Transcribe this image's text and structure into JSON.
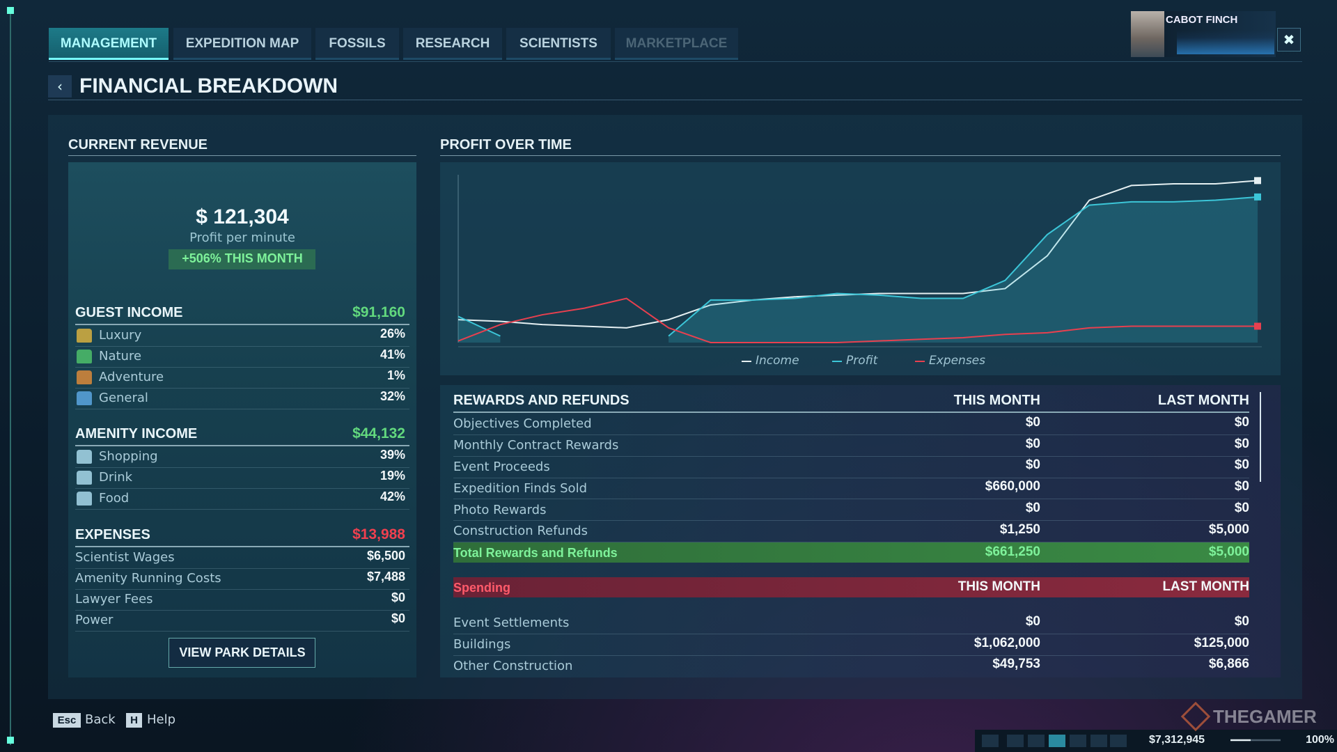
{
  "tabs": [
    "MANAGEMENT",
    "EXPEDITION MAP",
    "FOSSILS",
    "RESEARCH",
    "SCIENTISTS",
    "MARKETPLACE"
  ],
  "profile": {
    "name": "CABOT FINCH"
  },
  "header": {
    "title": "FINANCIAL BREAKDOWN"
  },
  "current_revenue": {
    "title": "CURRENT REVENUE",
    "profit": "$ 121,304",
    "profit_label": "Profit per minute",
    "change": "+506% THIS MONTH",
    "sections": [
      {
        "title": "GUEST INCOME",
        "total": "$91,160",
        "rows": [
          [
            "Luxury",
            "26%"
          ],
          [
            "Nature",
            "41%"
          ],
          [
            "Adventure",
            "1%"
          ],
          [
            "General",
            "32%"
          ]
        ]
      },
      {
        "title": "AMENITY INCOME",
        "total": "$44,132",
        "rows": [
          [
            "Shopping",
            "39%"
          ],
          [
            "Drink",
            "19%"
          ],
          [
            "Food",
            "42%"
          ]
        ]
      },
      {
        "title": "EXPENSES",
        "total": "$13,988",
        "rows": [
          [
            "Scientist Wages",
            "$6,500"
          ],
          [
            "Amenity Running Costs",
            "$7,488"
          ],
          [
            "Lawyer Fees",
            "$0"
          ],
          [
            "Power",
            "$0"
          ]
        ]
      }
    ],
    "button": "VIEW PARK DETAILS"
  },
  "chart_data": {
    "type": "line",
    "title": "PROFIT OVER TIME",
    "ylim": [
      0,
      100
    ],
    "series": [
      {
        "name": "Income",
        "color": "#e6f0f2",
        "values": [
          14,
          13,
          11,
          10,
          9,
          14,
          23,
          26,
          28,
          29,
          30,
          30,
          30,
          33,
          53,
          87,
          96,
          97,
          97,
          99
        ]
      },
      {
        "name": "Profit",
        "color": "#3cc6d8",
        "values": [
          16,
          4,
          null,
          null,
          null,
          4,
          26,
          26,
          27,
          30,
          29,
          27,
          27,
          38,
          66,
          84,
          86,
          86,
          87,
          89
        ]
      },
      {
        "name": "Expenses",
        "color": "#e8404f",
        "values": [
          1,
          11,
          17,
          21,
          27,
          9,
          0,
          0,
          0,
          0,
          1,
          2,
          3,
          5,
          6,
          9,
          10,
          10,
          10,
          10
        ]
      }
    ]
  },
  "rewards": {
    "title": "REWARDS AND REFUNDS",
    "columns": [
      "THIS MONTH",
      "LAST MONTH"
    ],
    "rows": [
      [
        "Objectives Completed",
        "$0",
        "$0"
      ],
      [
        "Monthly Contract Rewards",
        "$0",
        "$0"
      ],
      [
        "Event Proceeds",
        "$0",
        "$0"
      ],
      [
        "Expedition Finds Sold",
        "$660,000",
        "$0"
      ],
      [
        "Photo Rewards",
        "$0",
        "$0"
      ],
      [
        "Construction Refunds",
        "$1,250",
        "$5,000"
      ]
    ],
    "total": [
      "Total Rewards and Refunds",
      "$661,250",
      "$5,000"
    ]
  },
  "spending": {
    "title": "Spending",
    "columns": [
      "THIS MONTH",
      "LAST MONTH"
    ],
    "rows": [
      [
        "Event Settlements",
        "$0",
        "$0"
      ],
      [
        "Buildings",
        "$1,062,000",
        "$125,000"
      ],
      [
        "Other Construction",
        "$49,753",
        "$6,866"
      ]
    ]
  },
  "footer": {
    "keys": [
      {
        "key": "Esc",
        "label": "Back"
      },
      {
        "key": "H",
        "label": "Help"
      }
    ]
  },
  "status": {
    "money": "$7,312,945",
    "rating": "100%"
  },
  "watermark": "THEGAMER"
}
